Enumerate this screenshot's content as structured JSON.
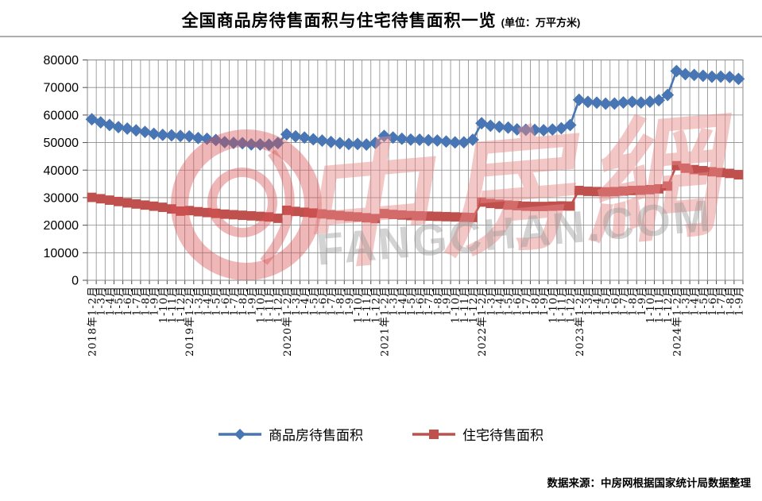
{
  "title": {
    "main": "全国商品房待售面积与住宅待售面积一览",
    "unit": "(单位：万平方米)"
  },
  "source": "数据来源：中房网根据国家统计局数据整理",
  "watermark": {
    "cn": "中房網",
    "en": "FANGCHAN.COM"
  },
  "chart_data": {
    "type": "line",
    "title": "全国商品房待售面积与住宅待售面积一览",
    "unit": "万平方米",
    "ylim": [
      0,
      80000
    ],
    "ytick_step": 10000,
    "ytick_labels": [
      "0",
      "10000",
      "20000",
      "30000",
      "40000",
      "50000",
      "60000",
      "70000",
      "80000"
    ],
    "grid": true,
    "legend_position": "bottom",
    "categories": [
      "2018年1-2月",
      "1-3月",
      "1-4月",
      "1-5月",
      "1-6月",
      "1-7月",
      "1-8月",
      "1-9月",
      "1-10月",
      "1-11月",
      "1-12月",
      "2019年1-2月",
      "1-3月",
      "1-4月",
      "1-5月",
      "1-6月",
      "1-7月",
      "1-8月",
      "1-9月",
      "1-10月",
      "1-11月",
      "1-12月",
      "2020年1-2月",
      "1-3月",
      "1-4月",
      "1-5月",
      "1-6月",
      "1-7月",
      "1-8月",
      "1-9月",
      "1-10月",
      "1-11月",
      "1-12月",
      "2021年1-2月",
      "1-3月",
      "1-4月",
      "1-5月",
      "1-6月",
      "1-7月",
      "1-8月",
      "1-9月",
      "1-10月",
      "1-11月",
      "1-12月",
      "2022年1-2月",
      "1-3月",
      "1-4月",
      "1-5月",
      "1-6月",
      "1-7月",
      "1-8月",
      "1-9月",
      "1-10月",
      "1-11月",
      "1-12月",
      "2023年1-2月",
      "1-3月",
      "1-4月",
      "1-5月",
      "1-6月",
      "1-7月",
      "1-8月",
      "1-9月",
      "1-10月",
      "1-11月",
      "1-12月",
      "2024年1-2月",
      "1-3月",
      "1-4月",
      "1-5月",
      "1-6月",
      "1-7月",
      "1-8月",
      "1-9月"
    ],
    "series": [
      {
        "name": "商品房待售面积",
        "color": "#4876b4",
        "marker": "diamond",
        "values": [
          58468,
          57329,
          56384,
          55610,
          55083,
          54428,
          53873,
          53191,
          52789,
          52627,
          52414,
          52251,
          51646,
          51380,
          50928,
          50162,
          49876,
          49784,
          49346,
          49323,
          49221,
          49821,
          52991,
          52255,
          51825,
          51184,
          50718,
          50212,
          49792,
          49484,
          49492,
          49287,
          49850,
          52425,
          51835,
          51380,
          51087,
          51038,
          50864,
          50738,
          50385,
          50063,
          50092,
          51023,
          57026,
          56113,
          55735,
          55433,
          54784,
          54655,
          54605,
          54478,
          54734,
          55203,
          56366,
          65528,
          64770,
          64487,
          64120,
          64159,
          64564,
          64795,
          64537,
          64835,
          65385,
          67295,
          75969,
          74833,
          74553,
          74256,
          73894,
          73926,
          73784,
          73114
        ]
      },
      {
        "name": "住宅待售面积",
        "color": "#c0504d",
        "marker": "square",
        "values": [
          30100,
          29600,
          29100,
          28600,
          28100,
          27700,
          27300,
          26900,
          26500,
          25900,
          25100,
          25300,
          24900,
          24600,
          24300,
          24000,
          23800,
          23600,
          23400,
          23200,
          23000,
          22500,
          25400,
          25000,
          24700,
          24400,
          24100,
          23800,
          23500,
          23200,
          23000,
          22700,
          22400,
          24200,
          23900,
          23700,
          23500,
          23400,
          23300,
          23200,
          23100,
          23000,
          22900,
          22800,
          28400,
          27900,
          27600,
          27300,
          27100,
          26900,
          26800,
          26800,
          26900,
          27000,
          26947,
          32600,
          32300,
          32200,
          32100,
          32200,
          32400,
          32600,
          32700,
          32900,
          33200,
          34200,
          41600,
          40700,
          40200,
          39800,
          39400,
          39100,
          38800,
          38300
        ]
      }
    ]
  }
}
